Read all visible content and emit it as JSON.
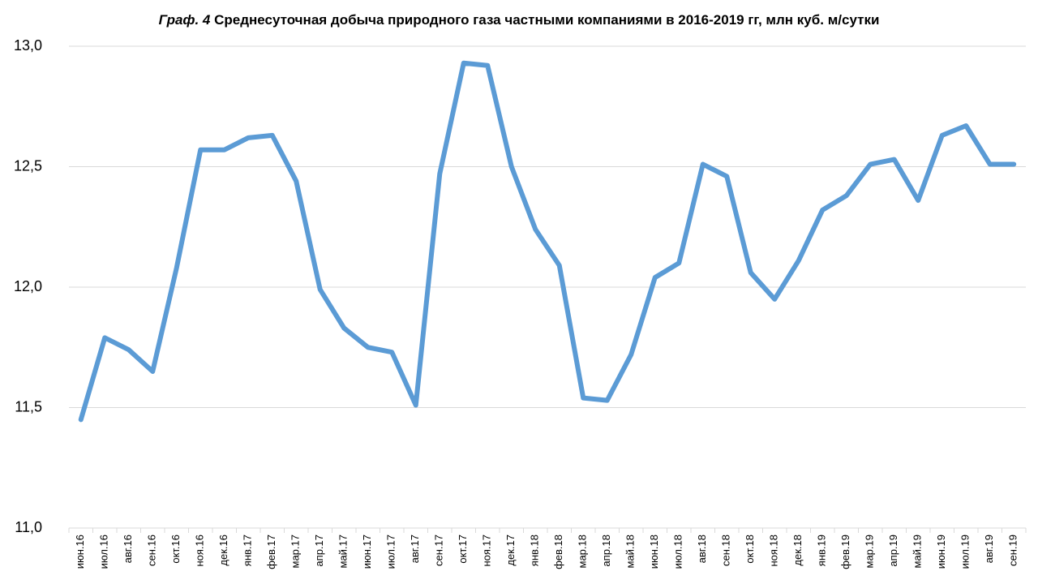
{
  "chart_data": {
    "type": "line",
    "figure_label": "Граф. 4",
    "title": "Среднесуточная добыча природного газа частными компаниями в 2016-2019 гг, млн куб. м/сутки",
    "categories": [
      "июн.16",
      "июл.16",
      "авг.16",
      "сен.16",
      "окт.16",
      "ноя.16",
      "дек.16",
      "янв.17",
      "фев.17",
      "мар.17",
      "апр.17",
      "май.17",
      "июн.17",
      "июл.17",
      "авг.17",
      "сен.17",
      "окт.17",
      "ноя.17",
      "дек.17",
      "янв.18",
      "фев.18",
      "мар.18",
      "апр.18",
      "май.18",
      "июн.18",
      "июл.18",
      "авг.18",
      "сен.18",
      "окт.18",
      "ноя.18",
      "дек.18",
      "янв.19",
      "фев.19",
      "мар.19",
      "апр.19",
      "май.19",
      "июн.19",
      "июл.19",
      "авг.19",
      "сен.19"
    ],
    "values": [
      11.45,
      11.79,
      11.74,
      11.65,
      12.08,
      12.57,
      12.57,
      12.62,
      12.63,
      12.44,
      11.99,
      11.83,
      11.75,
      11.73,
      11.51,
      12.47,
      12.93,
      12.92,
      12.5,
      12.24,
      12.09,
      11.54,
      11.53,
      11.72,
      12.04,
      12.1,
      12.51,
      12.46,
      12.06,
      11.95,
      12.11,
      12.32,
      12.38,
      12.51,
      12.53,
      12.36,
      12.63,
      12.67,
      12.51,
      12.51
    ],
    "color": "#5b9bd5",
    "ylim": [
      11,
      13
    ],
    "yticks": [
      {
        "value": 11,
        "label": "11,0"
      },
      {
        "value": 11.5,
        "label": "11,5"
      },
      {
        "value": 12,
        "label": "12,0"
      },
      {
        "value": 12.5,
        "label": "12,5"
      },
      {
        "value": 13,
        "label": "13,0"
      }
    ],
    "grid": true
  }
}
